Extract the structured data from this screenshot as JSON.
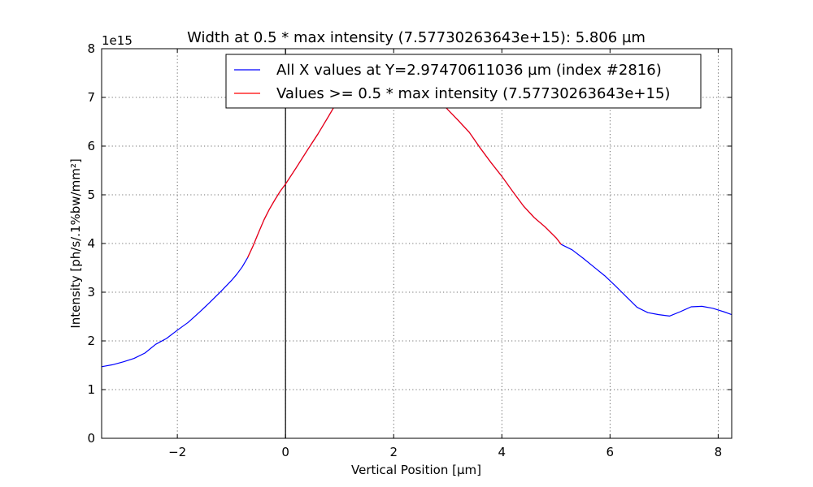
{
  "chart_data": {
    "type": "line",
    "title": "Width at 0.5 * max intensity (7.57730263643e+15): 5.806 µm",
    "xlabel": "Vertical Position [µm]",
    "ylabel": "Intensity [ph/s/.1%bw/mm²]",
    "y_offset_label": "1e15",
    "xlim": [
      -3.4,
      8.25
    ],
    "ylim": [
      0,
      8
    ],
    "x_ticks": [
      -2,
      0,
      2,
      4,
      6,
      8
    ],
    "x_tick_labels": [
      "−2",
      "0",
      "2",
      "4",
      "6",
      "8"
    ],
    "y_ticks": [
      0,
      1,
      2,
      3,
      4,
      5,
      6,
      7,
      8
    ],
    "y_tick_labels": [
      "0",
      "1",
      "2",
      "3",
      "4",
      "5",
      "6",
      "7",
      "8"
    ],
    "grid": true,
    "legend_position": "top-right",
    "vline_x": 0,
    "series": [
      {
        "name": "All X values at Y=2.97470611036 µm (index #2816)",
        "color": "#0000ff",
        "x": [
          -3.4,
          -3.2,
          -3.0,
          -2.8,
          -2.6,
          -2.4,
          -2.2,
          -2.0,
          -1.8,
          -1.6,
          -1.4,
          -1.2,
          -1.0,
          -0.9,
          -0.8,
          -0.7,
          -0.6,
          -0.5,
          -0.4,
          -0.3,
          -0.2,
          -0.1,
          0.0,
          0.2,
          0.4,
          0.6,
          0.8,
          1.0,
          1.2,
          1.4,
          1.6,
          1.8,
          2.0,
          2.2,
          2.4,
          2.6,
          2.8,
          3.0,
          3.2,
          3.4,
          3.6,
          3.8,
          4.0,
          4.2,
          4.4,
          4.6,
          4.8,
          5.0,
          5.1,
          5.3,
          5.5,
          5.7,
          5.9,
          6.1,
          6.3,
          6.5,
          6.7,
          6.9,
          7.1,
          7.3,
          7.5,
          7.7,
          7.9,
          8.1,
          8.25
        ],
        "y": [
          1.47,
          1.51,
          1.57,
          1.64,
          1.75,
          1.93,
          2.05,
          2.22,
          2.38,
          2.58,
          2.79,
          3.01,
          3.24,
          3.37,
          3.52,
          3.71,
          3.95,
          4.22,
          4.48,
          4.7,
          4.89,
          5.07,
          5.22,
          5.56,
          5.91,
          6.25,
          6.62,
          7.0,
          7.28,
          7.52,
          7.64,
          7.68,
          7.67,
          7.58,
          7.43,
          7.24,
          7.0,
          6.75,
          6.52,
          6.28,
          5.96,
          5.66,
          5.38,
          5.07,
          4.77,
          4.53,
          4.34,
          4.12,
          3.98,
          3.87,
          3.7,
          3.52,
          3.34,
          3.13,
          2.91,
          2.69,
          2.58,
          2.54,
          2.51,
          2.6,
          2.7,
          2.71,
          2.67,
          2.6,
          2.54
        ]
      },
      {
        "name": "Values >= 0.5 * max intensity (7.57730263643e+15)",
        "color": "#ff0000",
        "x": [
          -0.7,
          -0.6,
          -0.5,
          -0.4,
          -0.3,
          -0.2,
          -0.1,
          0.0,
          0.2,
          0.4,
          0.6,
          0.8,
          1.0,
          1.2,
          1.4,
          1.6,
          1.8,
          2.0,
          2.2,
          2.4,
          2.6,
          2.8,
          3.0,
          3.2,
          3.4,
          3.6,
          3.8,
          4.0,
          4.2,
          4.4,
          4.6,
          4.8,
          5.0,
          5.1
        ],
        "y": [
          3.71,
          3.95,
          4.22,
          4.48,
          4.7,
          4.89,
          5.07,
          5.22,
          5.56,
          5.91,
          6.25,
          6.62,
          7.0,
          7.28,
          7.52,
          7.64,
          7.68,
          7.67,
          7.58,
          7.43,
          7.24,
          7.0,
          6.75,
          6.52,
          6.28,
          5.96,
          5.66,
          5.38,
          5.07,
          4.77,
          4.53,
          4.34,
          4.12,
          3.98
        ]
      }
    ]
  }
}
